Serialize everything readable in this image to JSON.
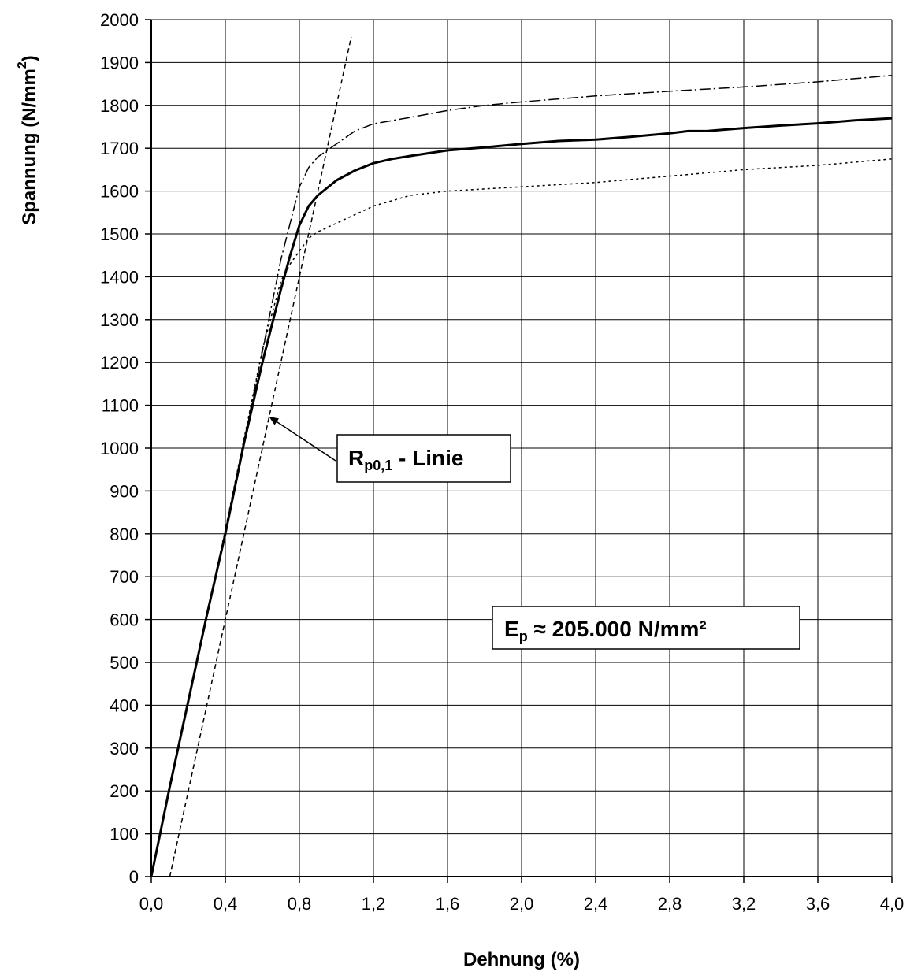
{
  "chart_data": {
    "type": "line",
    "xlabel": "Dehnung (%)",
    "ylabel": {
      "main": "Spannung (N/mm",
      "sup": "2",
      "close": ")"
    },
    "xlim": [
      0,
      4.0
    ],
    "ylim": [
      0,
      2000
    ],
    "x_ticks": [
      0,
      0.4,
      0.8,
      1.2,
      1.6,
      2.0,
      2.4,
      2.8,
      3.2,
      3.6,
      4.0
    ],
    "x_tick_labels": [
      "0,0",
      "0,4",
      "0,8",
      "1,2",
      "1,6",
      "2,0",
      "2,4",
      "2,8",
      "3,2",
      "3,6",
      "4,0"
    ],
    "y_ticks": [
      0,
      100,
      200,
      300,
      400,
      500,
      600,
      700,
      800,
      900,
      1000,
      1100,
      1200,
      1300,
      1400,
      1500,
      1600,
      1700,
      1800,
      1900,
      2000
    ],
    "y_tick_labels": [
      "0",
      "100",
      "200",
      "300",
      "400",
      "500",
      "600",
      "700",
      "800",
      "900",
      "1000",
      "1100",
      "1200",
      "1300",
      "1400",
      "1500",
      "1600",
      "1700",
      "1800",
      "1900",
      "2000"
    ],
    "grid": true,
    "series": [
      {
        "style": "solid-bold",
        "x": [
          0,
          0.1,
          0.2,
          0.3,
          0.4,
          0.5,
          0.6,
          0.7,
          0.75,
          0.8,
          0.85,
          0.9,
          1.0,
          1.1,
          1.2,
          1.3,
          1.4,
          1.6,
          1.8,
          2.0,
          2.2,
          2.4,
          2.6,
          2.8,
          2.9,
          3.0,
          3.2,
          3.4,
          3.6,
          3.8,
          4.0
        ],
        "y": [
          0,
          210,
          410,
          610,
          800,
          1010,
          1200,
          1370,
          1450,
          1520,
          1565,
          1590,
          1625,
          1648,
          1665,
          1675,
          1682,
          1695,
          1702,
          1710,
          1717,
          1720,
          1727,
          1735,
          1740,
          1740,
          1747,
          1753,
          1758,
          1765,
          1770
        ]
      },
      {
        "style": "dash-dot",
        "x": [
          0,
          0.2,
          0.4,
          0.6,
          0.7,
          0.8,
          0.85,
          0.9,
          1.0,
          1.1,
          1.2,
          1.4,
          1.6,
          1.8,
          2.0,
          2.2,
          2.4,
          2.8,
          3.2,
          3.6,
          4.0
        ],
        "y": [
          0,
          410,
          805,
          1225,
          1440,
          1610,
          1655,
          1680,
          1710,
          1740,
          1757,
          1772,
          1788,
          1800,
          1808,
          1815,
          1822,
          1833,
          1843,
          1855,
          1870
        ]
      },
      {
        "style": "dotted",
        "x": [
          0,
          0.2,
          0.4,
          0.6,
          0.7,
          0.75,
          0.8,
          0.85,
          0.9,
          1.0,
          1.2,
          1.4,
          1.6,
          2.0,
          2.4,
          2.8,
          3.2,
          3.6,
          4.0
        ],
        "y": [
          0,
          410,
          810,
          1230,
          1390,
          1430,
          1460,
          1490,
          1505,
          1525,
          1565,
          1590,
          1600,
          1610,
          1620,
          1635,
          1650,
          1660,
          1675
        ]
      },
      {
        "style": "dashed",
        "name": "Rp0,1 - Linie",
        "x": [
          0.1,
          1.08
        ],
        "y": [
          0,
          1960
        ]
      }
    ],
    "annotations": [
      {
        "id": "rp-line-label",
        "main": "R",
        "sub": "p0,1",
        "rest": " - Linie"
      },
      {
        "id": "modulus-label",
        "main": "E",
        "sub": "p",
        "rest": " ≈ 205.000 N/mm²"
      }
    ]
  }
}
